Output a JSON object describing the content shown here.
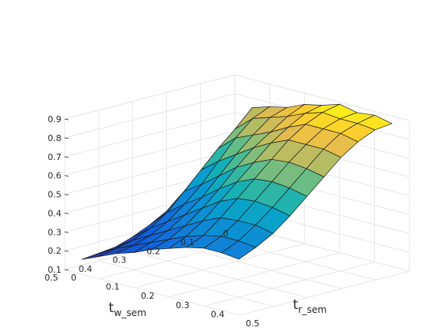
{
  "chart_data": {
    "type": "surface",
    "xlabel": {
      "main": "t",
      "sub": "w_sem"
    },
    "ylabel": {
      "main": "t",
      "sub": "r_sem"
    },
    "zlabel": "",
    "x_ticks": [
      "0",
      "0.1",
      "0.2",
      "0.3",
      "0.4",
      "0.5"
    ],
    "y_ticks": [
      "0",
      "0.1",
      "0.2",
      "0.3",
      "0.4",
      "0.5"
    ],
    "z_ticks": [
      "0.1",
      "0.2",
      "0.3",
      "0.4",
      "0.5",
      "0.6",
      "0.7",
      "0.8",
      "0.9"
    ],
    "xlim": [
      0,
      0.5
    ],
    "ylim": [
      0,
      0.5
    ],
    "zlim": [
      0.1,
      0.9
    ],
    "grid": true,
    "colormap": "parula",
    "x": [
      0,
      0.05,
      0.1,
      0.15,
      0.2,
      0.25,
      0.3,
      0.35,
      0.4,
      0.45
    ],
    "y": [
      0,
      0.05,
      0.1,
      0.15,
      0.2,
      0.25,
      0.3,
      0.35,
      0.4,
      0.45
    ],
    "z": [
      [
        0.52,
        0.75,
        0.78,
        0.8,
        0.84,
        0.86,
        0.89,
        0.87,
        0.88,
        0.86
      ],
      [
        0.47,
        0.66,
        0.74,
        0.77,
        0.8,
        0.84,
        0.87,
        0.86,
        0.86,
        0.85
      ],
      [
        0.4,
        0.58,
        0.66,
        0.7,
        0.74,
        0.79,
        0.83,
        0.83,
        0.83,
        0.81
      ],
      [
        0.33,
        0.49,
        0.56,
        0.62,
        0.68,
        0.73,
        0.77,
        0.77,
        0.77,
        0.75
      ],
      [
        0.27,
        0.4,
        0.46,
        0.53,
        0.6,
        0.65,
        0.69,
        0.7,
        0.69,
        0.67
      ],
      [
        0.22,
        0.31,
        0.38,
        0.44,
        0.51,
        0.57,
        0.61,
        0.62,
        0.61,
        0.59
      ],
      [
        0.18,
        0.25,
        0.31,
        0.37,
        0.43,
        0.49,
        0.53,
        0.54,
        0.53,
        0.51
      ],
      [
        0.15,
        0.21,
        0.26,
        0.31,
        0.36,
        0.41,
        0.45,
        0.46,
        0.46,
        0.44
      ],
      [
        0.14,
        0.19,
        0.23,
        0.27,
        0.31,
        0.35,
        0.38,
        0.4,
        0.4,
        0.39
      ],
      [
        0.13,
        0.17,
        0.21,
        0.24,
        0.28,
        0.31,
        0.34,
        0.36,
        0.36,
        0.35
      ]
    ]
  }
}
